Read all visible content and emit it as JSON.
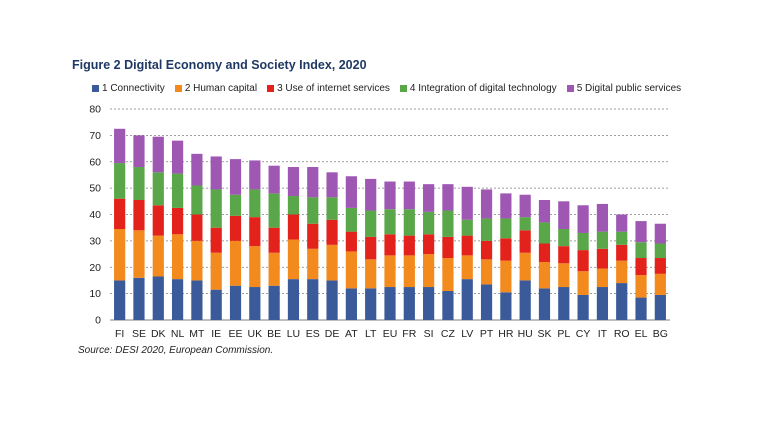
{
  "chart_data": {
    "type": "bar",
    "stacked": true,
    "title": "Figure 2 Digital Economy and Society Index, 2020",
    "source": "Source: DESI 2020, European Commission.",
    "ylim": [
      0,
      80
    ],
    "yticks": [
      0,
      10,
      20,
      30,
      40,
      50,
      60,
      70,
      80
    ],
    "grid": true,
    "legend_position": "top",
    "categories": [
      "FI",
      "SE",
      "DK",
      "NL",
      "MT",
      "IE",
      "EE",
      "UK",
      "BE",
      "LU",
      "ES",
      "DE",
      "AT",
      "LT",
      "EU",
      "FR",
      "SI",
      "CZ",
      "LV",
      "PT",
      "HR",
      "HU",
      "SK",
      "PL",
      "CY",
      "IT",
      "RO",
      "EL",
      "BG"
    ],
    "series": [
      {
        "name": "1 Connectivity",
        "color": "#3b5a9a",
        "values": [
          15,
          16,
          16.5,
          15.5,
          15,
          11.5,
          13,
          12.5,
          13,
          15.5,
          15.5,
          15,
          12,
          12,
          12.5,
          12.5,
          12.5,
          11,
          15.5,
          13.5,
          10.5,
          15,
          12,
          12.5,
          9.5,
          12.5,
          14,
          8.5,
          9.5
        ]
      },
      {
        "name": "2 Human capital",
        "color": "#f28a1e",
        "values": [
          19.5,
          18,
          15.5,
          17,
          15,
          14,
          17,
          15.5,
          12.5,
          15,
          11.5,
          13.5,
          14,
          11,
          12,
          12,
          12.5,
          12.5,
          9,
          9.5,
          12,
          10.5,
          10,
          9,
          9,
          7,
          8.5,
          8.5,
          8
        ]
      },
      {
        "name": "3 Use of internet services",
        "color": "#e3231b",
        "values": [
          11.5,
          11.5,
          11.5,
          10,
          10,
          9.5,
          9.5,
          11,
          9.5,
          9.5,
          9.5,
          9.5,
          7.5,
          8.5,
          8,
          7.5,
          7.5,
          8,
          7.5,
          7,
          8.5,
          8.5,
          7,
          6.5,
          8,
          7.5,
          6,
          6.5,
          6
        ]
      },
      {
        "name": "4 Integration of digital technology",
        "color": "#5aa74a",
        "values": [
          13.5,
          12.5,
          12.5,
          13,
          11,
          14.5,
          8,
          10.5,
          13,
          7,
          10,
          8.5,
          9,
          10,
          9.5,
          10,
          8.5,
          10,
          6,
          8.5,
          7.5,
          5,
          8,
          6.5,
          6.5,
          6.5,
          5,
          6,
          5.5
        ]
      },
      {
        "name": "5 Digital public services",
        "color": "#9e57b3",
        "values": [
          13,
          12,
          13.5,
          12.5,
          12,
          12.5,
          13.5,
          11,
          10.5,
          11,
          11.5,
          9.5,
          12,
          12,
          10.5,
          10.5,
          10.5,
          10,
          12.5,
          11,
          9.5,
          8.5,
          8.5,
          10.5,
          10.5,
          10.5,
          6.5,
          8,
          7.5
        ]
      }
    ]
  }
}
